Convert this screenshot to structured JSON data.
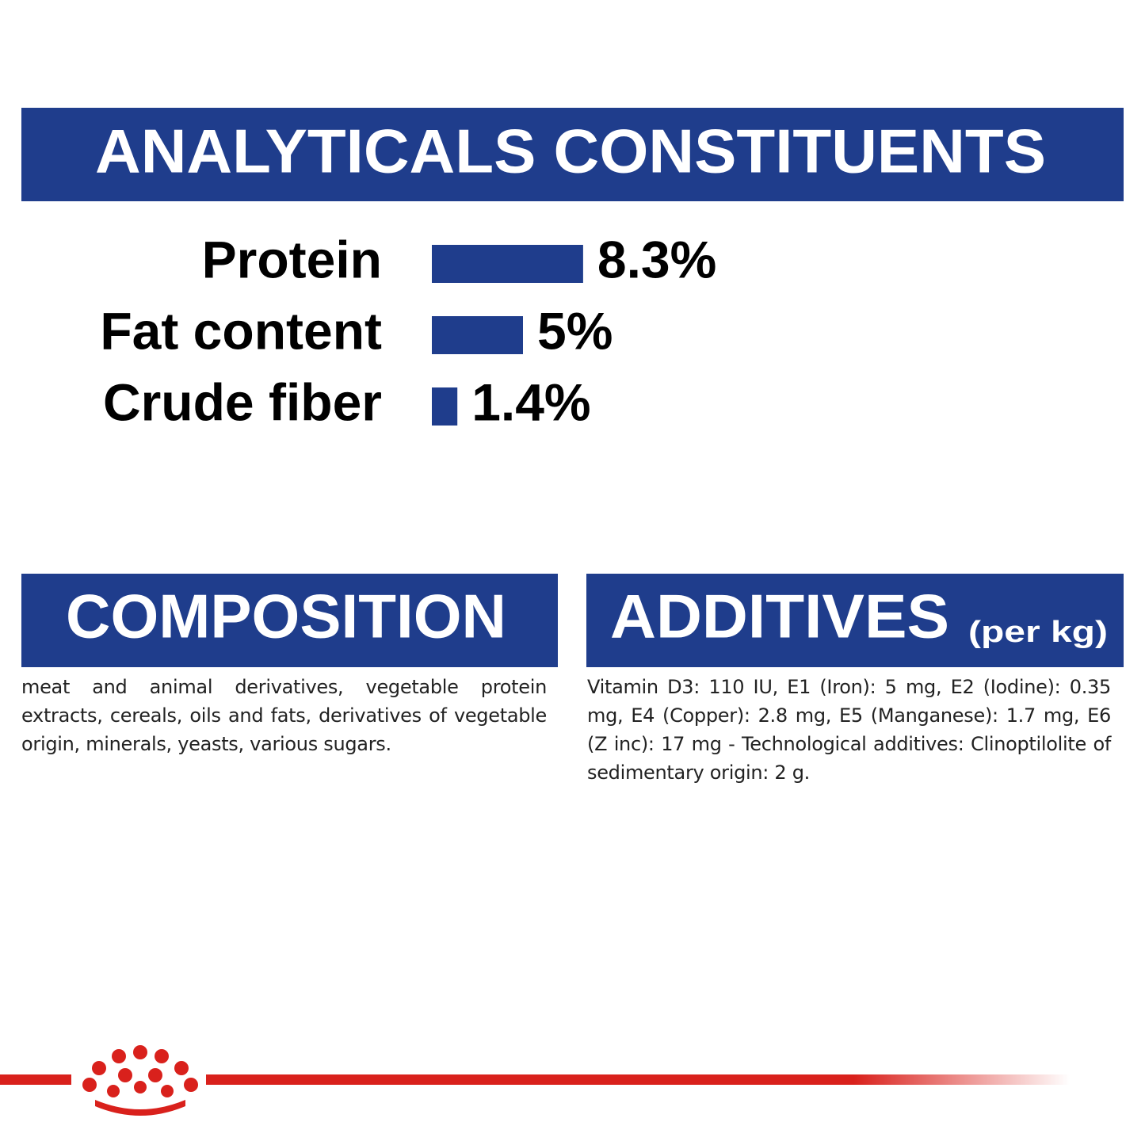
{
  "chart_data": {
    "type": "bar",
    "orientation": "horizontal",
    "title": "ANALYTICALS CONSTITUENTS",
    "categories": [
      "Protein",
      "Fat content",
      "Crude fiber"
    ],
    "values": [
      8.3,
      5,
      1.4
    ],
    "value_labels": [
      "8.3%",
      "5%",
      "1.4%"
    ],
    "color": "#1f3d8c"
  },
  "composition": {
    "title": "COMPOSITION",
    "text": "meat and animal derivatives, vegetable protein extracts, cereals, oils and fats, derivatives of vegetable origin, minerals, yeasts, various sugars."
  },
  "additives": {
    "title": "ADDITIVES",
    "unit": "(per kg)",
    "text": "Vitamin D3: 110 IU, E1 (Iron): 5 mg, E2 (Iodine): 0.35 mg, E4 (Copper): 2.8 mg, E5 (Manganese): 1.7 mg, E6 (Z inc): 17 mg - Technological additives: Clinoptilolite of sedimentary origin: 2 g."
  }
}
